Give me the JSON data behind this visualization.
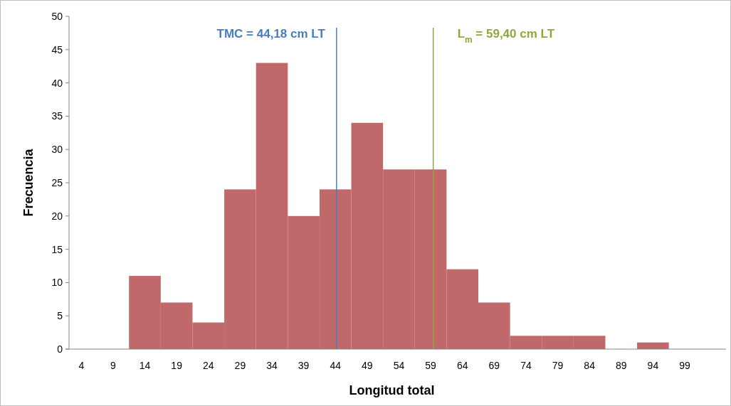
{
  "chart_data": {
    "type": "histogram",
    "xlabel": "Longitud total",
    "ylabel": "Frecuencia",
    "bins": [
      1.5,
      6.5,
      11.5,
      16.5,
      21.5,
      26.5,
      31.5,
      36.5,
      41.5,
      46.5,
      51.5,
      56.5,
      61.5,
      66.5,
      71.5,
      76.5,
      81.5,
      86.5,
      91.5,
      96.5,
      101.5
    ],
    "values": [
      0,
      0,
      11,
      7,
      4,
      24,
      43,
      20,
      24,
      34,
      27,
      27,
      12,
      7,
      2,
      2,
      2,
      0,
      1,
      0
    ],
    "color": "#c0696a",
    "xlim": [
      1.5,
      105.5
    ],
    "xticks": [
      4,
      9,
      14,
      19,
      24,
      29,
      34,
      39,
      44,
      49,
      54,
      59,
      64,
      69,
      74,
      79,
      84,
      89,
      94,
      99
    ],
    "ylim": [
      0,
      50
    ],
    "yticks": [
      0,
      5,
      10,
      15,
      20,
      25,
      30,
      35,
      40,
      45,
      50
    ],
    "ref_lines": [
      {
        "axis": "x",
        "value": 44.18,
        "label": "TMC = 44,18 cm LT",
        "color": "#4a7ebb"
      },
      {
        "axis": "x",
        "value": 59.4,
        "label": "L$_{m}$ = 59,40 cm LT",
        "color": "#8aaa3c"
      }
    ]
  }
}
